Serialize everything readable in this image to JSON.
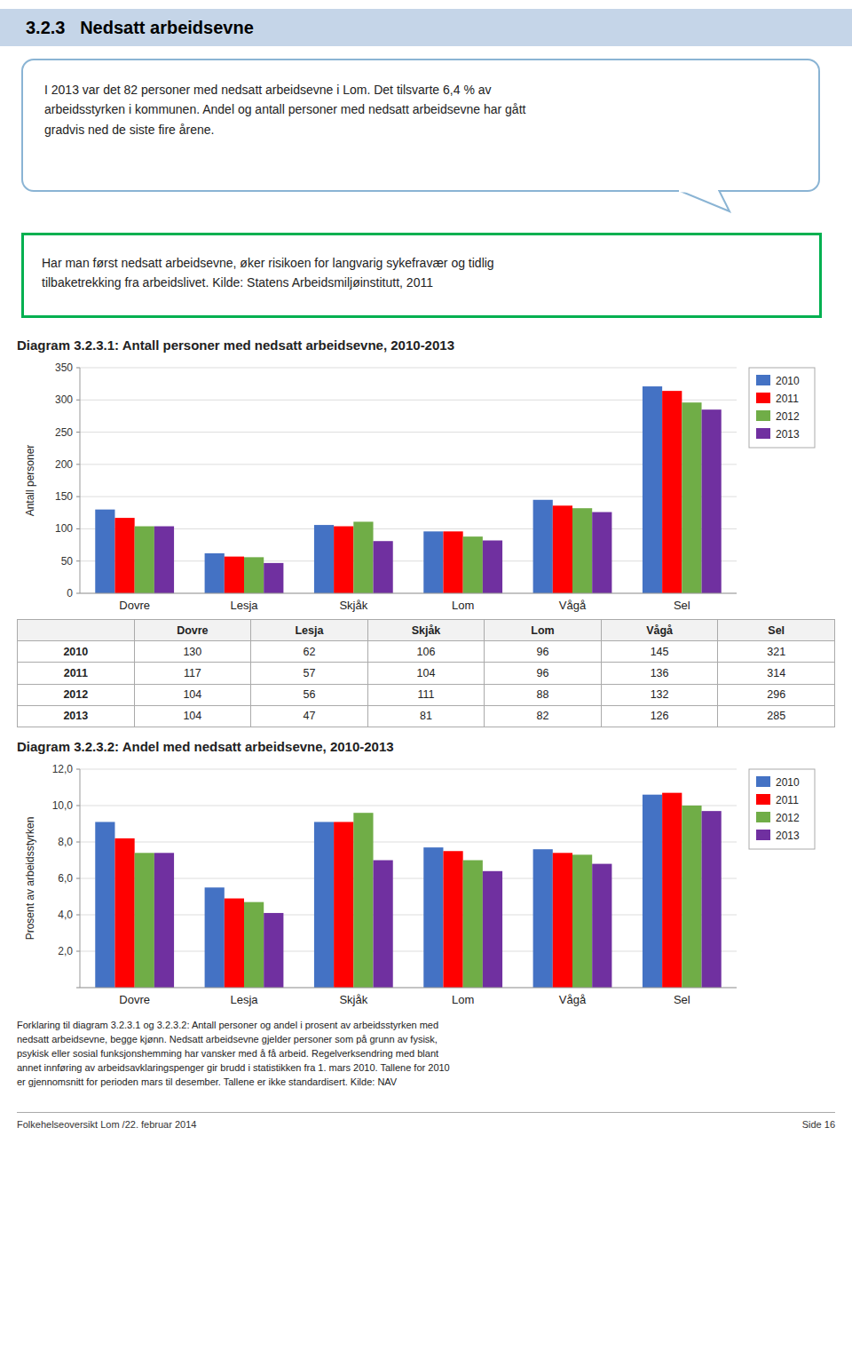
{
  "title": "3.2.3   Nedsatt arbeidsevne",
  "annotations": [
    [
      "I 2013 var det 82 personer med nedsatt arbeidsevne i Lom. Det tilsvarte 6,4 % av",
      "arbeidsstyrken i kommunen. Andel og antall personer med nedsatt arbeidsevne har gått",
      "gradvis ned de siste fire årene."
    ],
    [
      "Har man først nedsatt arbeidsevne, øker risikoen for langvarig sykefravær og tidlig",
      "tilbaketrekking fra arbeidslivet. Kilde: Statens Arbeidsmiljøinstitutt, 2011"
    ],
    [
      "Forklaring til diagram 3.2.3.1 og 3.2.3.2: Antall personer og andel i prosent av arbeidsstyrken med",
      "nedsatt arbeidsevne, begge kjønn. Nedsatt arbeidsevne gjelder personer som på grunn av fysisk,",
      "psykisk eller sosial funksjonshemming har vansker med å få arbeid. Regelverksendring med blant",
      "annet innføring av arbeidsavklaringspenger gir brudd i statistikken fra 1. mars 2010. Tallene for 2010",
      "er gjennomsnitt for perioden mars til desember. Tallene er ikke standardisert. Kilde: NAV"
    ],
    [
      "Folkehelseoversikt Lom /22. februar 2014",
      "Side 16"
    ]
  ],
  "chart_data": [
    {
      "type": "bar",
      "title": "Diagram 3.2.3.1: Antall personer med nedsatt arbeidsevne, 2010-2013",
      "y_label": "Antall personer",
      "categories": [
        "Dovre",
        "Lesja",
        "Skjåk",
        "Lom",
        "Vågå",
        "Sel"
      ],
      "series": [
        {
          "name": "2010",
          "color": "#4472c4",
          "values": [
            130,
            62,
            106,
            96,
            145,
            321
          ]
        },
        {
          "name": "2011",
          "color": "#ff0000",
          "values": [
            117,
            57,
            104,
            96,
            136,
            314
          ]
        },
        {
          "name": "2012",
          "color": "#70ad47",
          "values": [
            104,
            56,
            111,
            88,
            132,
            296
          ]
        },
        {
          "name": "2013",
          "color": "#7030a0",
          "values": [
            104,
            47,
            81,
            82,
            126,
            285
          ]
        }
      ],
      "ylim": [
        0,
        350
      ],
      "yticks": [
        0,
        50,
        100,
        150,
        200,
        250,
        300,
        350
      ],
      "grid": true,
      "legend": "upper right"
    },
    {
      "type": "bar",
      "title": "Diagram 3.2.3.2: Andel med nedsatt arbeidsevne, 2010-2013",
      "y_label": "Prosent av arbeidsstyrken",
      "categories": [
        "Dovre",
        "Lesja",
        "Skjåk",
        "Lom",
        "Vågå",
        "Sel"
      ],
      "series": [
        {
          "name": "2010",
          "color": "#4472c4",
          "values": [
            9.1,
            5.5,
            9.1,
            7.7,
            7.6,
            10.6
          ]
        },
        {
          "name": "2011",
          "color": "#ff0000",
          "values": [
            8.2,
            4.9,
            9.1,
            7.5,
            7.4,
            10.7
          ]
        },
        {
          "name": "2012",
          "color": "#70ad47",
          "values": [
            7.4,
            4.7,
            9.6,
            7.0,
            7.3,
            10.0
          ]
        },
        {
          "name": "2013",
          "color": "#7030a0",
          "values": [
            7.4,
            4.1,
            7.0,
            6.4,
            6.8,
            9.7
          ]
        }
      ],
      "ylim": [
        0,
        12
      ],
      "yticks": [
        {
          "value": 0,
          "label": ""
        },
        {
          "value": 2,
          "label": "2,0"
        },
        {
          "value": 4,
          "label": "4,0"
        },
        {
          "value": 6,
          "label": "6,0"
        },
        {
          "value": 8,
          "label": "8,0"
        },
        {
          "value": 10,
          "label": "10,0"
        },
        {
          "value": 12,
          "label": "12,0"
        }
      ],
      "grid": true,
      "legend": "upper right"
    }
  ]
}
